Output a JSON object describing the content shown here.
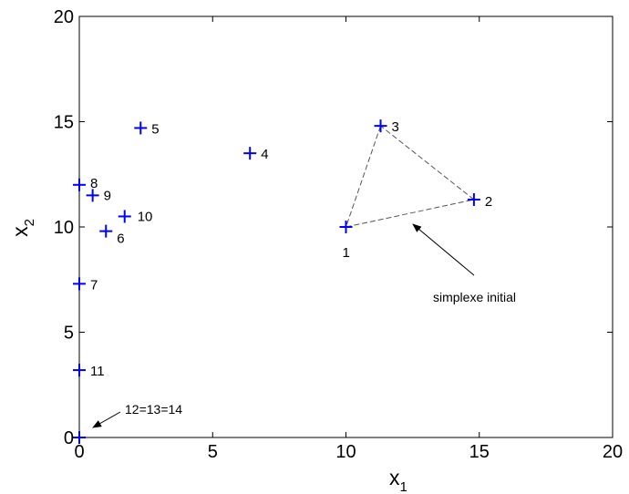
{
  "chart_data": {
    "type": "scatter",
    "xlabel": "x",
    "xlabel_sub": "1",
    "ylabel": "x",
    "ylabel_sub": "2",
    "xlim": [
      0,
      20
    ],
    "ylim": [
      0,
      20
    ],
    "xticks": [
      "0",
      "5",
      "10",
      "15",
      "20"
    ],
    "yticks": [
      "0",
      "5",
      "10",
      "15",
      "20"
    ],
    "grid": false,
    "marker_color": "#0000ff",
    "points": [
      {
        "label": "1",
        "x": 10.0,
        "y": 10.0
      },
      {
        "label": "2",
        "x": 14.8,
        "y": 11.3
      },
      {
        "label": "3",
        "x": 11.3,
        "y": 14.8
      },
      {
        "label": "4",
        "x": 6.4,
        "y": 13.5
      },
      {
        "label": "5",
        "x": 2.3,
        "y": 14.7
      },
      {
        "label": "6",
        "x": 1.0,
        "y": 9.8
      },
      {
        "label": "7",
        "x": 0.0,
        "y": 7.3
      },
      {
        "label": "8",
        "x": 0.0,
        "y": 12.0
      },
      {
        "label": "9",
        "x": 0.5,
        "y": 11.5
      },
      {
        "label": "10",
        "x": 1.7,
        "y": 10.5
      },
      {
        "label": "11",
        "x": 0.0,
        "y": 3.2
      },
      {
        "label": "12=13=14",
        "x": 0.0,
        "y": 0.0
      }
    ],
    "simplex": [
      1,
      2,
      3
    ],
    "annotation_simplex": "simplexe initial",
    "annotation_origin": "12=13=14"
  }
}
